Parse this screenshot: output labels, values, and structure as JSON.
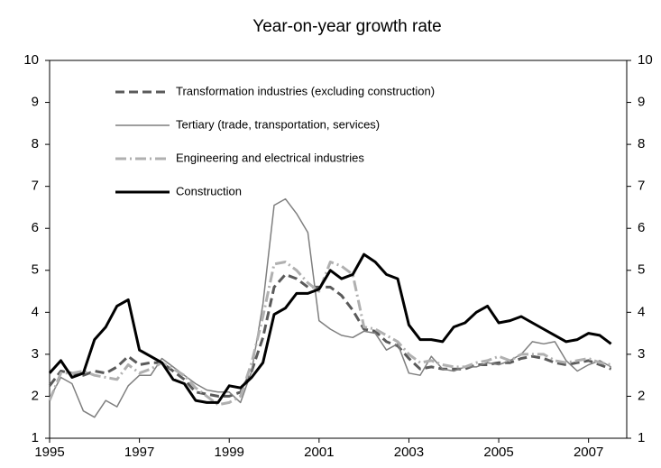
{
  "chart_data": {
    "type": "line",
    "title": "Year-on-year growth rate",
    "x": [
      1995,
      1995.25,
      1995.5,
      1995.75,
      1996,
      1996.25,
      1996.5,
      1996.75,
      1997,
      1997.25,
      1997.5,
      1997.75,
      1998,
      1998.25,
      1998.5,
      1998.75,
      1999,
      1999.25,
      1999.5,
      1999.75,
      2000,
      2000.25,
      2000.5,
      2000.75,
      2001,
      2001.25,
      2001.5,
      2001.75,
      2002,
      2002.25,
      2002.5,
      2002.75,
      2003,
      2003.25,
      2003.5,
      2003.75,
      2004,
      2004.25,
      2004.5,
      2004.75,
      2005,
      2005.25,
      2005.5,
      2005.75,
      2006,
      2006.25,
      2006.5,
      2006.75,
      2007,
      2007.25,
      2007.5
    ],
    "series": [
      {
        "name": "Transformation industries (excluding construction)",
        "color": "#5a5a5a",
        "dash": "10,5",
        "width": 3,
        "values": [
          2.25,
          2.6,
          2.55,
          2.5,
          2.6,
          2.55,
          2.7,
          2.95,
          2.75,
          2.8,
          2.8,
          2.6,
          2.4,
          2.1,
          2.05,
          2.0,
          2.0,
          2.1,
          2.6,
          3.4,
          4.6,
          4.9,
          4.8,
          4.6,
          4.6,
          4.6,
          4.4,
          4.05,
          3.6,
          3.55,
          3.3,
          3.2,
          2.9,
          2.65,
          2.7,
          2.65,
          2.65,
          2.65,
          2.75,
          2.75,
          2.8,
          2.8,
          2.9,
          2.95,
          2.9,
          2.8,
          2.75,
          2.8,
          2.85,
          2.75,
          2.65
        ]
      },
      {
        "name": "Tertiary (trade, transportation, services)",
        "color": "#7f7f7f",
        "dash": "",
        "width": 1.5,
        "values": [
          1.95,
          2.45,
          2.3,
          1.65,
          1.5,
          1.9,
          1.75,
          2.25,
          2.5,
          2.5,
          2.9,
          2.7,
          2.5,
          2.3,
          2.15,
          2.1,
          2.1,
          1.85,
          2.6,
          4.2,
          6.55,
          6.7,
          6.35,
          5.9,
          3.8,
          3.6,
          3.45,
          3.4,
          3.55,
          3.5,
          3.1,
          3.25,
          2.55,
          2.5,
          2.95,
          2.65,
          2.6,
          2.7,
          2.7,
          2.8,
          2.75,
          2.85,
          3.0,
          3.3,
          3.25,
          3.3,
          2.85,
          2.6,
          2.75,
          2.85,
          2.7
        ]
      },
      {
        "name": "Engineering and  electrical industries",
        "color": "#b0b0b0",
        "dash": "12,4,2,4",
        "width": 3,
        "values": [
          1.9,
          2.55,
          2.55,
          2.6,
          2.5,
          2.45,
          2.4,
          2.75,
          2.55,
          2.65,
          2.8,
          2.65,
          2.5,
          2.2,
          2.0,
          1.8,
          1.85,
          2.0,
          2.8,
          3.9,
          5.15,
          5.2,
          5.0,
          4.7,
          4.5,
          5.2,
          5.1,
          4.9,
          3.65,
          3.6,
          3.45,
          3.3,
          3.0,
          2.8,
          2.85,
          2.75,
          2.7,
          2.7,
          2.8,
          2.85,
          2.95,
          2.85,
          3.0,
          3.0,
          3.0,
          2.85,
          2.8,
          2.85,
          2.9,
          2.8,
          2.75
        ]
      },
      {
        "name": "Construction",
        "color": "#000000",
        "dash": "",
        "width": 3,
        "values": [
          2.55,
          2.85,
          2.45,
          2.55,
          3.35,
          3.65,
          4.15,
          4.3,
          3.1,
          2.95,
          2.8,
          2.4,
          2.3,
          1.9,
          1.85,
          1.85,
          2.25,
          2.2,
          2.45,
          2.8,
          3.95,
          4.1,
          4.45,
          4.45,
          4.55,
          5.0,
          4.8,
          4.9,
          5.38,
          5.2,
          4.9,
          4.8,
          3.7,
          3.35,
          3.35,
          3.3,
          3.65,
          3.75,
          4.0,
          4.15,
          3.75,
          3.8,
          3.9,
          3.75,
          3.6,
          3.45,
          3.3,
          3.35,
          3.5,
          3.45,
          3.25
        ]
      }
    ],
    "xlim": [
      1995,
      2007.85
    ],
    "xticks": [
      1995,
      1997,
      1999,
      2001,
      2003,
      2005,
      2007
    ],
    "ylim": [
      1,
      10
    ],
    "yticks": [
      1,
      2,
      3,
      4,
      5,
      6,
      7,
      8,
      9,
      10
    ],
    "y2lim": [
      1,
      10
    ],
    "y2ticks": [
      1,
      2,
      3,
      4,
      5,
      6,
      7,
      8,
      9,
      10
    ],
    "legend": "upper-left"
  }
}
